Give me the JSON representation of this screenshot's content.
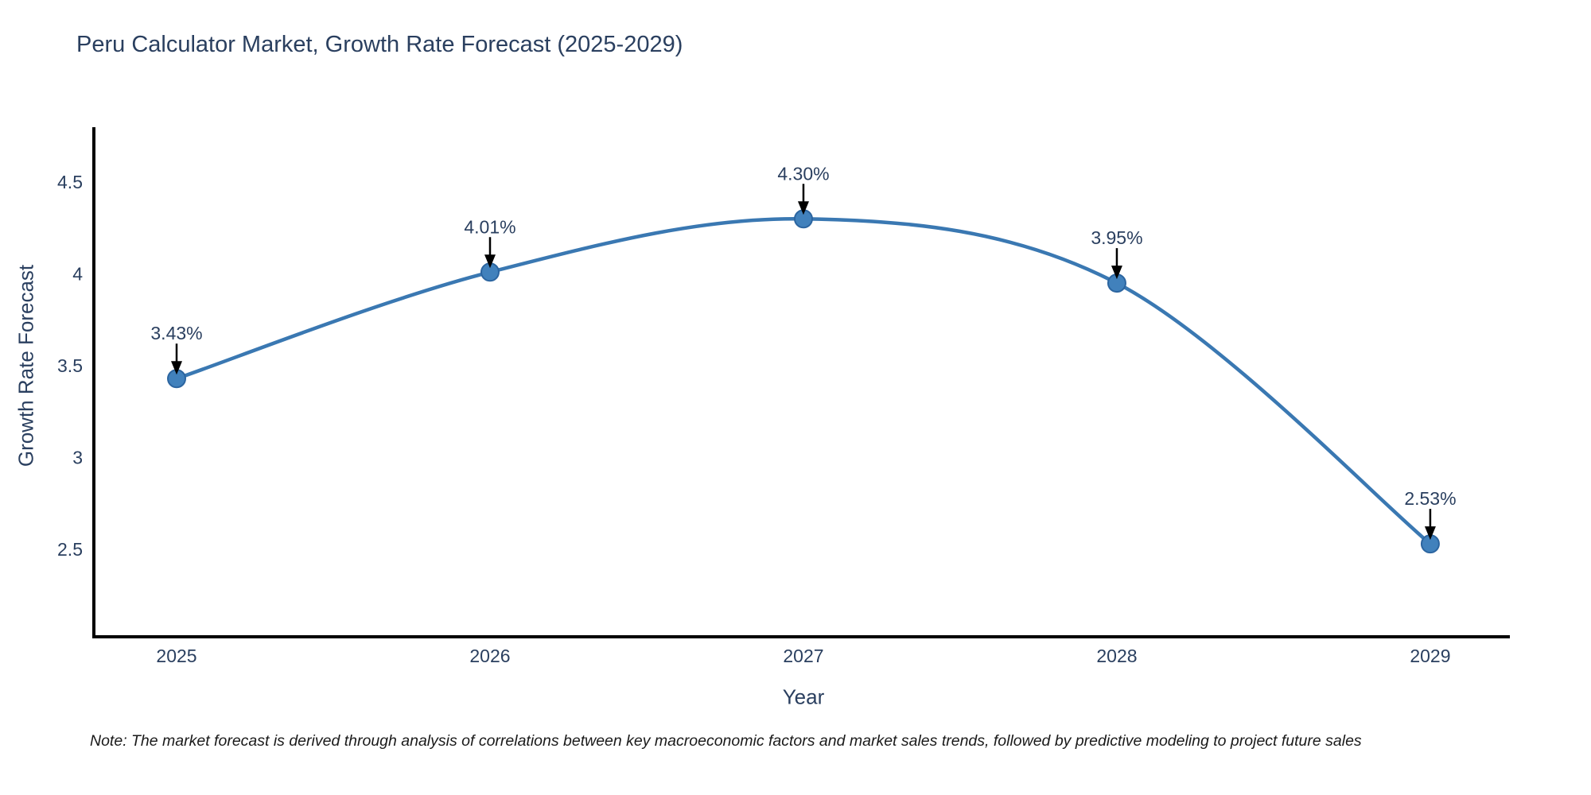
{
  "note": "Note: The market forecast is derived through analysis of correlations between key macroeconomic factors and market sales trends, followed by predictive modeling to project future sales",
  "chart_data": {
    "type": "line",
    "title": "Peru Calculator Market, Growth Rate Forecast (2025-2029)",
    "xlabel": "Year",
    "ylabel": "Growth Rate Forecast",
    "x": [
      2025,
      2026,
      2027,
      2028,
      2029
    ],
    "series": [
      {
        "name": "Growth Rate Forecast",
        "values": [
          3.43,
          4.01,
          4.3,
          3.95,
          2.53
        ]
      }
    ],
    "point_labels": [
      "3.43%",
      "4.01%",
      "4.30%",
      "3.95%",
      "2.53%"
    ],
    "yticks": [
      4.5,
      4,
      3.5,
      3,
      2.5
    ],
    "xticks": [
      2025,
      2026,
      2027,
      2028,
      2029
    ],
    "xlim": [
      2024.736,
      2029.254
    ],
    "ylim": [
      2.024,
      4.799
    ],
    "grid": false,
    "legend": "none",
    "line_shape": "spline",
    "colors": {
      "line": "#3a78b2",
      "marker_fill": "#4181bc",
      "marker_edge": "#2c65a0",
      "axis": "#000000",
      "tick_text": "#2a3f5f",
      "annotation_text": "#2a3f5f",
      "annotation_arrow": "#000000",
      "background": "#ffffff"
    }
  }
}
